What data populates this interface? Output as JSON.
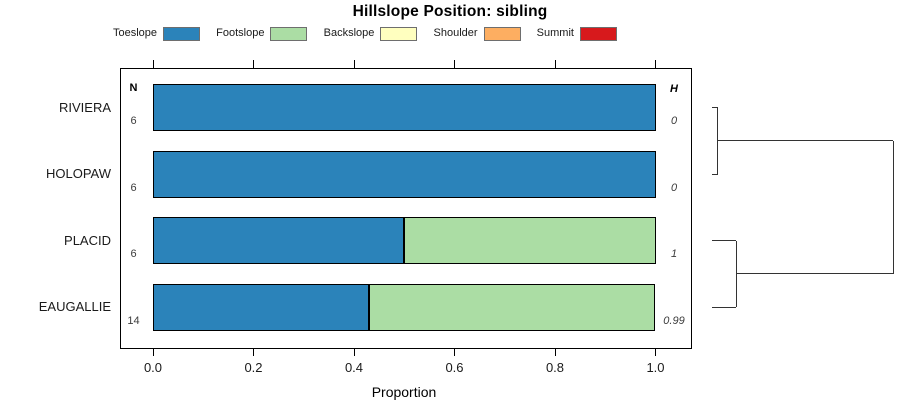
{
  "title": "Hillslope Position: sibling",
  "legend": [
    {
      "label": "Toeslope",
      "color": "#2B83BA"
    },
    {
      "label": "Footslope",
      "color": "#ABDDA4"
    },
    {
      "label": "Backslope",
      "color": "#FFFFBF"
    },
    {
      "label": "Shoulder",
      "color": "#FDAE61"
    },
    {
      "label": "Summit",
      "color": "#D7191C"
    }
  ],
  "chart_data": {
    "type": "bar",
    "stacked": true,
    "orientation": "horizontal",
    "title": "Hillslope Position: sibling",
    "xlabel": "Proportion",
    "xlim": [
      0,
      1
    ],
    "x_ticks": [
      "0.0",
      "0.2",
      "0.4",
      "0.6",
      "0.8",
      "1.0"
    ],
    "x_tick_values": [
      0.0,
      0.2,
      0.4,
      0.6,
      0.8,
      1.0
    ],
    "categories": [
      "Toeslope",
      "Footslope",
      "Backslope",
      "Shoulder",
      "Summit"
    ],
    "category_colors": [
      "#2B83BA",
      "#ABDDA4",
      "#FFFFBF",
      "#FDAE61",
      "#D7191C"
    ],
    "n_header": "N",
    "h_header": "H",
    "rows": [
      {
        "label": "RIVIERA",
        "n": "6",
        "h": "0",
        "segments": [
          {
            "category": "Toeslope",
            "proportion": 1.0
          }
        ]
      },
      {
        "label": "HOLOPAW",
        "n": "6",
        "h": "0",
        "segments": [
          {
            "category": "Toeslope",
            "proportion": 1.0
          }
        ]
      },
      {
        "label": "PLACID",
        "n": "6",
        "h": "1",
        "segments": [
          {
            "category": "Toeslope",
            "proportion": 0.5
          },
          {
            "category": "Footslope",
            "proportion": 0.5
          }
        ]
      },
      {
        "label": "EAUGALLIE",
        "n": "14",
        "h": "0.99",
        "segments": [
          {
            "category": "Toeslope",
            "proportion": 0.429
          },
          {
            "category": "Footslope",
            "proportion": 0.571
          }
        ]
      }
    ],
    "dendrogram": {
      "legend_note": "clusters reference row indices; height is normalized merge distance",
      "merges": [
        {
          "leaves": [
            0,
            1
          ],
          "height": 0.033
        },
        {
          "leaves": [
            2,
            3
          ],
          "height": 0.133
        }
      ],
      "root_height": 1.0
    },
    "grid": false,
    "legend_position": "top"
  }
}
